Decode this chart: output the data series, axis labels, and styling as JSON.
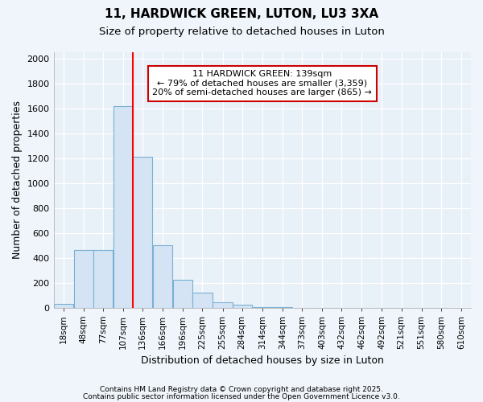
{
  "title1": "11, HARDWICK GREEN, LUTON, LU3 3XA",
  "title2": "Size of property relative to detached houses in Luton",
  "xlabel": "Distribution of detached houses by size in Luton",
  "ylabel": "Number of detached properties",
  "bin_labels": [
    "18sqm",
    "48sqm",
    "77sqm",
    "107sqm",
    "136sqm",
    "166sqm",
    "196sqm",
    "225sqm",
    "255sqm",
    "284sqm",
    "314sqm",
    "344sqm",
    "373sqm",
    "403sqm",
    "432sqm",
    "462sqm",
    "492sqm",
    "521sqm",
    "551sqm",
    "580sqm",
    "610sqm"
  ],
  "bin_edges": [
    18,
    48,
    77,
    107,
    136,
    166,
    196,
    225,
    255,
    284,
    314,
    344,
    373,
    403,
    432,
    462,
    492,
    521,
    551,
    580,
    610
  ],
  "bar_heights": [
    30,
    460,
    460,
    1620,
    1210,
    500,
    220,
    120,
    45,
    20,
    5,
    2,
    0,
    0,
    0,
    0,
    0,
    0,
    0,
    0
  ],
  "bar_color": "#d4e4f4",
  "bar_edge_color": "#7ab0d4",
  "red_line_x": 136,
  "ylim": [
    0,
    2050
  ],
  "yticks": [
    0,
    200,
    400,
    600,
    800,
    1000,
    1200,
    1400,
    1600,
    1800,
    2000
  ],
  "annotation_title": "11 HARDWICK GREEN: 139sqm",
  "annotation_line1": "← 79% of detached houses are smaller (3,359)",
  "annotation_line2": "20% of semi-detached houses are larger (865) →",
  "annotation_box_facecolor": "#ffffff",
  "annotation_box_edgecolor": "#cc0000",
  "footer1": "Contains HM Land Registry data © Crown copyright and database right 2025.",
  "footer2": "Contains public sector information licensed under the Open Government Licence v3.0.",
  "bg_color": "#f0f5fb",
  "grid_color": "#ffffff",
  "plot_bg_color": "#e8f0f8"
}
